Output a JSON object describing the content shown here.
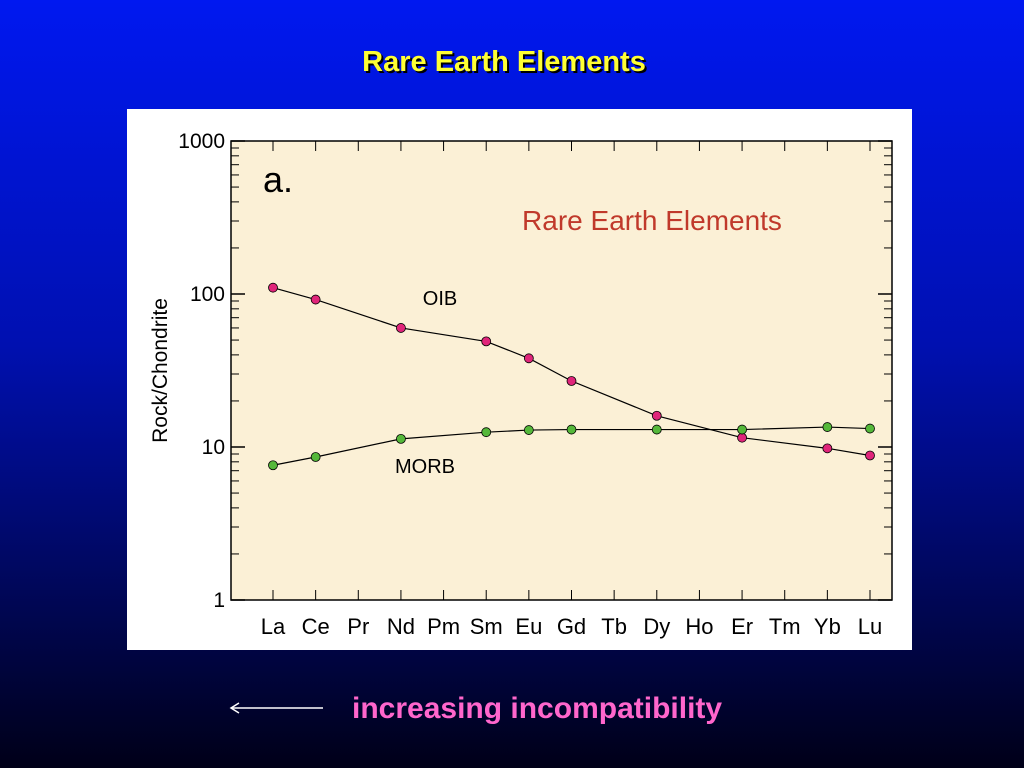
{
  "slide": {
    "title": "Rare Earth Elements",
    "footer_text": "increasing incompatibility",
    "title_color": "#ffff33",
    "footer_color": "#ff66cc"
  },
  "chart_data": {
    "type": "line",
    "panel_label": "a.",
    "title": "Rare Earth Elements",
    "xlabel": "",
    "ylabel": "Rock/Chondrite",
    "yscale": "log",
    "ylim": [
      1,
      1000
    ],
    "yticks": [
      "1000",
      "100",
      "10",
      "1"
    ],
    "categories": [
      "La",
      "Ce",
      "Pr",
      "Nd",
      "Pm",
      "Sm",
      "Eu",
      "Gd",
      "Tb",
      "Dy",
      "Ho",
      "Er",
      "Tm",
      "Yb",
      "Lu"
    ],
    "grid": false,
    "plot_background": "#fbf0d6",
    "title_color": "#c0392b",
    "series": [
      {
        "name": "OIB",
        "color": "#e0257a",
        "points": [
          {
            "x": "La",
            "y": 110
          },
          {
            "x": "Ce",
            "y": 92
          },
          {
            "x": "Nd",
            "y": 60
          },
          {
            "x": "Sm",
            "y": 49
          },
          {
            "x": "Eu",
            "y": 38
          },
          {
            "x": "Gd",
            "y": 27
          },
          {
            "x": "Dy",
            "y": 16
          },
          {
            "x": "Er",
            "y": 11.5
          },
          {
            "x": "Yb",
            "y": 9.8
          },
          {
            "x": "Lu",
            "y": 8.8
          }
        ]
      },
      {
        "name": "MORB",
        "color": "#55b83a",
        "points": [
          {
            "x": "La",
            "y": 7.6
          },
          {
            "x": "Ce",
            "y": 8.6
          },
          {
            "x": "Nd",
            "y": 11.3
          },
          {
            "x": "Sm",
            "y": 12.5
          },
          {
            "x": "Eu",
            "y": 12.9
          },
          {
            "x": "Gd",
            "y": 13
          },
          {
            "x": "Dy",
            "y": 13
          },
          {
            "x": "Er",
            "y": 13
          },
          {
            "x": "Yb",
            "y": 13.5
          },
          {
            "x": "Lu",
            "y": 13.2
          }
        ]
      }
    ]
  }
}
